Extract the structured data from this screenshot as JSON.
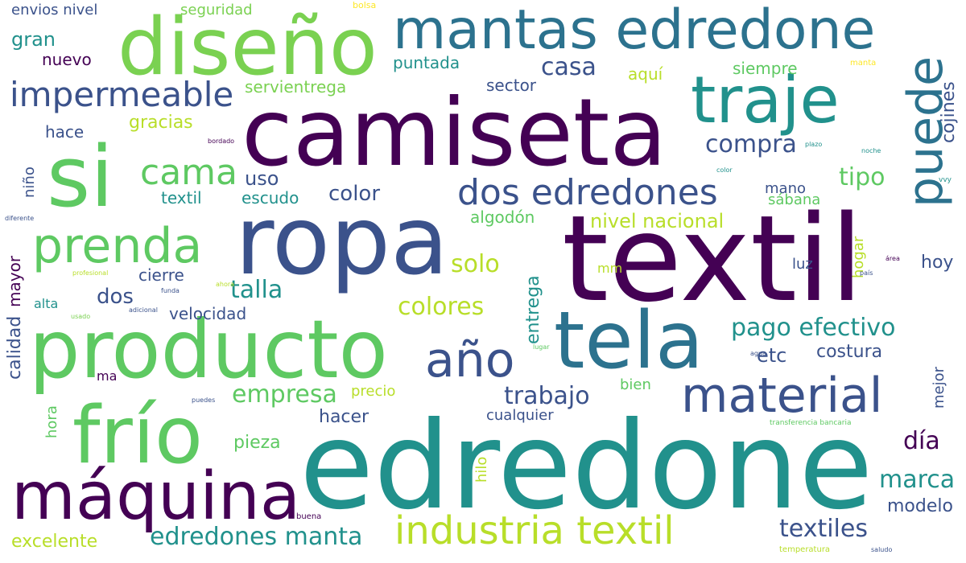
{
  "palette": {
    "background": "#ffffff",
    "c1": "#440154",
    "c2": "#3b528b",
    "c3": "#21918c",
    "c4": "#5ec962",
    "c5": "#b8de29",
    "c6": "#fde725"
  },
  "words": [
    {
      "text": "camiseta",
      "color": "#440154"
    },
    {
      "text": "edredone",
      "color": "#21918c"
    },
    {
      "text": "textil",
      "color": "#440154"
    },
    {
      "text": "ropa",
      "color": "#3b528b"
    },
    {
      "text": "producto",
      "color": "#5ec962"
    },
    {
      "text": "si",
      "color": "#5ec962"
    },
    {
      "text": "diseño",
      "color": "#7ad151"
    },
    {
      "text": "tela",
      "color": "#2c728e"
    },
    {
      "text": "frío",
      "color": "#5ec962"
    },
    {
      "text": "máquina",
      "color": "#440154"
    },
    {
      "text": "mantas edredone",
      "color": "#2c728e"
    },
    {
      "text": "traje",
      "color": "#21918c"
    },
    {
      "text": "puede",
      "color": "#2c728e"
    },
    {
      "text": "prenda",
      "color": "#5ec962"
    },
    {
      "text": "material",
      "color": "#3b528b"
    },
    {
      "text": "año",
      "color": "#3b528b"
    },
    {
      "text": "industria textil",
      "color": "#b8de29"
    },
    {
      "text": "dos edredones",
      "color": "#3b528b"
    },
    {
      "text": "impermeable",
      "color": "#3b528b"
    },
    {
      "text": "cama",
      "color": "#5ec962"
    },
    {
      "text": "edredones manta",
      "color": "#21918c"
    },
    {
      "text": "pago efectivo",
      "color": "#21918c"
    },
    {
      "text": "casa",
      "color": "#3b528b"
    },
    {
      "text": "compra",
      "color": "#3b528b"
    },
    {
      "text": "talla",
      "color": "#21918c"
    },
    {
      "text": "trabajo",
      "color": "#3b528b"
    },
    {
      "text": "colores",
      "color": "#b8de29"
    },
    {
      "text": "empresa",
      "color": "#5ec962"
    },
    {
      "text": "solo",
      "color": "#b8de29"
    },
    {
      "text": "tipo",
      "color": "#5ec962"
    },
    {
      "text": "textiles",
      "color": "#3b528b"
    },
    {
      "text": "marca",
      "color": "#21918c"
    },
    {
      "text": "día",
      "color": "#440154"
    },
    {
      "text": "color",
      "color": "#3b528b"
    },
    {
      "text": "dos",
      "color": "#3b528b"
    },
    {
      "text": "gran",
      "color": "#21918c"
    },
    {
      "text": "nivel nacional",
      "color": "#b8de29"
    },
    {
      "text": "uso",
      "color": "#3b528b"
    },
    {
      "text": "etc",
      "color": "#3b528b"
    },
    {
      "text": "excelente",
      "color": "#b8de29"
    },
    {
      "text": "cojines",
      "color": "#3b528b"
    },
    {
      "text": "gracias",
      "color": "#b8de29"
    },
    {
      "text": "modelo",
      "color": "#3b528b"
    },
    {
      "text": "hacer",
      "color": "#3b528b"
    },
    {
      "text": "costura",
      "color": "#3b528b"
    },
    {
      "text": "hoy",
      "color": "#3b528b"
    },
    {
      "text": "pieza",
      "color": "#5ec962"
    },
    {
      "text": "entrega",
      "color": "#21918c"
    },
    {
      "text": "calidad",
      "color": "#3b528b"
    },
    {
      "text": "mayor",
      "color": "#440154"
    },
    {
      "text": "hace",
      "color": "#3b528b"
    },
    {
      "text": "servientrega",
      "color": "#7ad151"
    },
    {
      "text": "algodón",
      "color": "#5ec962"
    },
    {
      "text": "textil",
      "color": "#21918c"
    },
    {
      "text": "escudo",
      "color": "#21918c"
    },
    {
      "text": "cierre",
      "color": "#3b528b"
    },
    {
      "text": "velocidad",
      "color": "#3b528b"
    },
    {
      "text": "puntada",
      "color": "#21918c"
    },
    {
      "text": "sector",
      "color": "#3b528b"
    },
    {
      "text": "aquí",
      "color": "#b8de29"
    },
    {
      "text": "siempre",
      "color": "#5ec962"
    },
    {
      "text": "nuevo",
      "color": "#440154"
    },
    {
      "text": "envios nivel",
      "color": "#3b528b"
    },
    {
      "text": "seguridad",
      "color": "#7ad151"
    },
    {
      "text": "mano",
      "color": "#3b528b"
    },
    {
      "text": "sábana",
      "color": "#5ec962"
    },
    {
      "text": "luz",
      "color": "#3b528b"
    },
    {
      "text": "hogar",
      "color": "#b8de29"
    },
    {
      "text": "bien",
      "color": "#5ec962"
    },
    {
      "text": "mejor",
      "color": "#3b528b"
    },
    {
      "text": "cualquier",
      "color": "#3b528b"
    },
    {
      "text": "precio",
      "color": "#b8de29"
    },
    {
      "text": "hilo",
      "color": "#b8de29"
    },
    {
      "text": "hora",
      "color": "#5ec962"
    },
    {
      "text": "niño",
      "color": "#3b528b"
    },
    {
      "text": "alta",
      "color": "#21918c"
    },
    {
      "text": "ma",
      "color": "#440154"
    },
    {
      "text": "mm",
      "color": "#b8de29"
    },
    {
      "text": "bolsa",
      "color": "#fde725"
    },
    {
      "text": "manta",
      "color": "#fde725"
    },
    {
      "text": "buena",
      "color": "#440154"
    },
    {
      "text": "temperatura",
      "color": "#b8de29"
    },
    {
      "text": "transferencia bancaria",
      "color": "#5ec962"
    },
    {
      "text": "bordado",
      "color": "#440154"
    },
    {
      "text": "plazo",
      "color": "#21918c"
    },
    {
      "text": "noche",
      "color": "#21918c"
    },
    {
      "text": "color",
      "color": "#21918c"
    },
    {
      "text": "diferente",
      "color": "#3b528b"
    },
    {
      "text": "profesional",
      "color": "#b8de29"
    },
    {
      "text": "funda",
      "color": "#3b528b"
    },
    {
      "text": "ahora",
      "color": "#b8de29"
    },
    {
      "text": "adicional",
      "color": "#3b528b"
    },
    {
      "text": "usado",
      "color": "#7ad151"
    },
    {
      "text": "área",
      "color": "#440154"
    },
    {
      "text": "país",
      "color": "#3b528b"
    },
    {
      "text": "agua",
      "color": "#3b528b"
    },
    {
      "text": "puedes",
      "color": "#3b528b"
    },
    {
      "text": "saludo",
      "color": "#3b528b"
    },
    {
      "text": "vvy",
      "color": "#21918c"
    },
    {
      "text": "lugar",
      "color": "#5ec962"
    }
  ]
}
